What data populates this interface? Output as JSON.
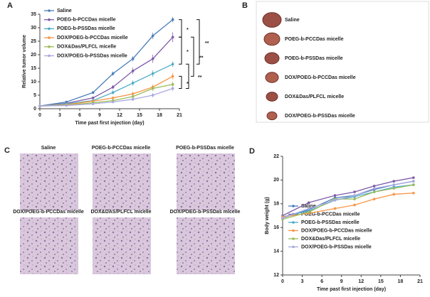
{
  "chart_data": [
    {
      "type": "line",
      "label": "A",
      "xlabel": "Time past first injection (day)",
      "ylabel": "Relative tumor volume",
      "x": [
        0,
        4,
        8,
        11,
        14,
        17,
        20
      ],
      "xlim": [
        0,
        21
      ],
      "xticks": [
        0,
        3,
        6,
        9,
        12,
        15,
        18,
        21
      ],
      "ylim": [
        0,
        35
      ],
      "yticks": [
        0,
        5,
        10,
        15,
        20,
        25,
        30,
        35
      ],
      "legend": "upper left",
      "series": [
        {
          "name": "Saline",
          "color": "#4a7ebb",
          "values": [
            1,
            2.5,
            6,
            13,
            18.5,
            27,
            33
          ],
          "errors": [
            0.2,
            0.3,
            0.5,
            0.8,
            1.0,
            1.2,
            1.0
          ]
        },
        {
          "name": "POEG-b-PCCDas micelle",
          "color": "#7e5ca8",
          "values": [
            1,
            2,
            4,
            8,
            14,
            18.5,
            26.5
          ],
          "errors": [
            0.2,
            0.3,
            0.5,
            0.8,
            1.2,
            1.5,
            1.8
          ]
        },
        {
          "name": "POEG-b-PSSDas micelle",
          "color": "#4bacc6",
          "values": [
            1,
            1.8,
            3,
            6,
            9.5,
            13,
            16.5
          ],
          "errors": [
            0.2,
            0.3,
            0.4,
            0.7,
            1.0,
            1.2,
            1.0
          ]
        },
        {
          "name": "DOX/POEG-b-PCCDas micelle",
          "color": "#f79646",
          "values": [
            1,
            1.5,
            2.8,
            4,
            5.5,
            8,
            12
          ],
          "errors": [
            0.2,
            0.3,
            0.4,
            0.5,
            0.8,
            1.0,
            1.2
          ]
        },
        {
          "name": "DOX&Das/PLFCL micelle",
          "color": "#9bbb59",
          "values": [
            1,
            1.3,
            2.2,
            3,
            4.5,
            7.5,
            9
          ],
          "errors": [
            0.2,
            0.2,
            0.3,
            0.5,
            0.7,
            1.0,
            1.0
          ]
        },
        {
          "name": "DOX/POEG-b-PSSDas micelle",
          "color": "#a9a9e0",
          "values": [
            1,
            1.2,
            1.8,
            2.5,
            3.5,
            5,
            7.5
          ],
          "errors": [
            0.2,
            0.2,
            0.3,
            0.4,
            0.6,
            0.8,
            1.0
          ]
        }
      ],
      "annotations": [
        "*",
        "**",
        "*",
        "**",
        "*",
        "**"
      ]
    },
    {
      "type": "line",
      "label": "D",
      "xlabel": "Time past first injection (day)",
      "ylabel": "Body weight (g)",
      "x": [
        0,
        4,
        8,
        11,
        14,
        17,
        20
      ],
      "xlim": [
        0,
        21
      ],
      "xticks": [
        0,
        3,
        6,
        9,
        12,
        15,
        18,
        21
      ],
      "ylim": [
        12,
        22
      ],
      "yticks": [
        12,
        14,
        16,
        18,
        20,
        22
      ],
      "legend": "lower right",
      "series": [
        {
          "name": "Saline",
          "color": "#4a7ebb",
          "values": [
            16.8,
            17.5,
            18.5,
            18.7,
            19.2,
            19.6,
            19.9
          ]
        },
        {
          "name": "POEG-b-PCCDas micelle",
          "color": "#7e5ca8",
          "values": [
            17.0,
            18.1,
            18.7,
            19.0,
            19.5,
            19.9,
            20.2
          ]
        },
        {
          "name": "POEG-b-PSSDas micelle",
          "color": "#4bacc6",
          "values": [
            16.9,
            17.4,
            18.3,
            18.6,
            19.0,
            19.4,
            19.6
          ]
        },
        {
          "name": "DOX/POEG-b-PCCDas micelle",
          "color": "#f79646",
          "values": [
            16.9,
            17.2,
            17.6,
            17.9,
            18.4,
            18.8,
            18.9
          ]
        },
        {
          "name": "DOX&Das/PLFCL micelle",
          "color": "#9bbb59",
          "values": [
            16.7,
            17.3,
            18.4,
            18.4,
            19.0,
            19.3,
            19.6
          ]
        },
        {
          "name": "DOX/POEG-b-PSSDas micelle",
          "color": "#a9a9e0",
          "values": [
            16.8,
            17.6,
            18.3,
            18.7,
            19.3,
            19.6,
            19.9
          ]
        }
      ]
    }
  ],
  "panel_b": {
    "label": "B",
    "items": [
      "Saline",
      "POEG-b-PCCDas micelle",
      "POEG-b-PSSDas micelle",
      "DOX/POEG-b-PCCDas micelle",
      "DOX&Das/PLFCL micelle",
      "DOX/POEG-b-PSSDas micelle"
    ]
  },
  "panel_c": {
    "label": "C",
    "items": [
      "Saline",
      "POEG-b-PCCDas micelle",
      "POEG-b-PSSDas micelle",
      "DOX/POEG-b-PCCDas micelle",
      "DOX&DAS/PLFCL micelle",
      "DOX/POEG-b-PSSDas micelle"
    ]
  }
}
